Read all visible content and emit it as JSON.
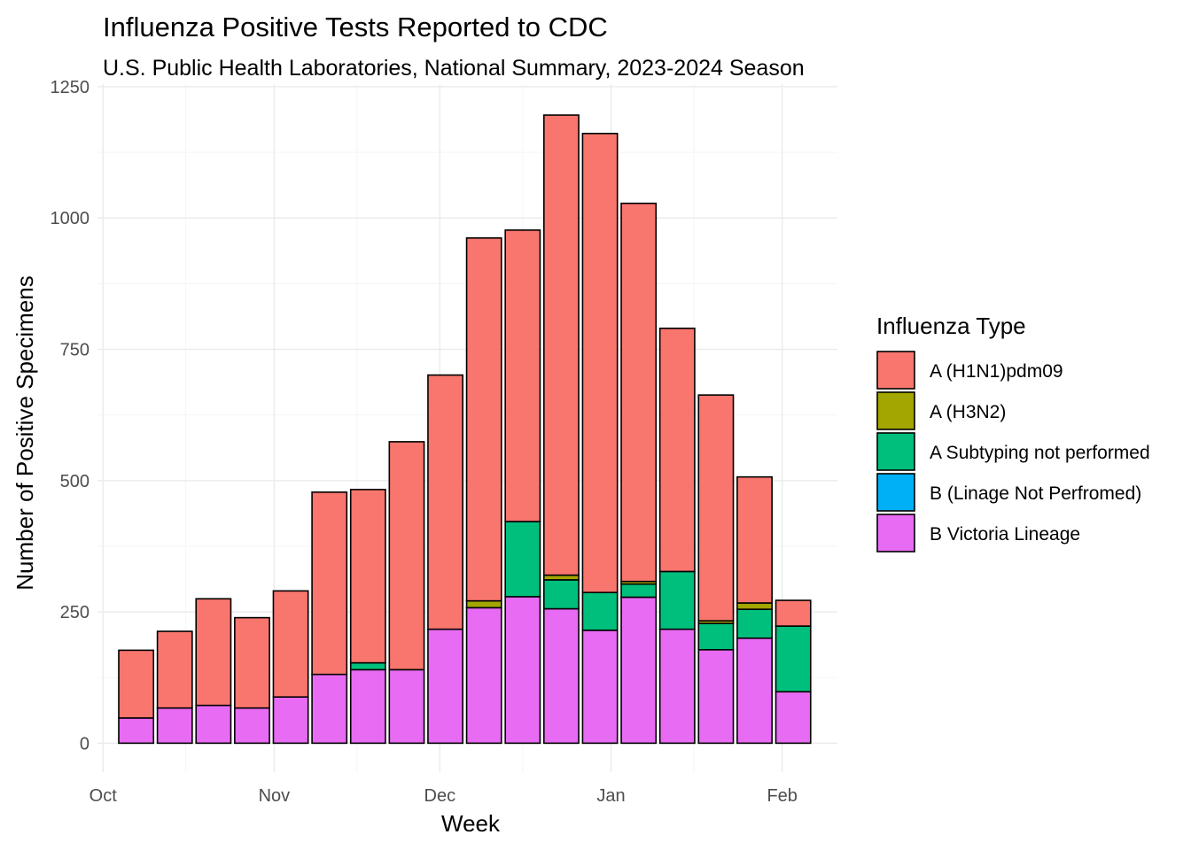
{
  "chart_data": {
    "type": "bar",
    "stacked": true,
    "title": "Influenza Positive Tests Reported to CDC",
    "subtitle": "U.S. Public Health Laboratories, National Summary, 2023-2024 Season",
    "xlabel": "Week",
    "ylabel": "Number of Positive Specimens",
    "ylim": [
      -55,
      1255
    ],
    "yticks": [
      0,
      250,
      500,
      750,
      1000,
      1250
    ],
    "x_date_range": [
      "2023-09-30",
      "2024-02-11"
    ],
    "x_ticks": [
      {
        "date": "2023-10-01",
        "label": "Oct"
      },
      {
        "date": "2023-11-01",
        "label": "Nov"
      },
      {
        "date": "2023-12-01",
        "label": "Dec"
      },
      {
        "date": "2024-01-01",
        "label": "Jan"
      },
      {
        "date": "2024-02-01",
        "label": "Feb"
      }
    ],
    "x_minor_ticks": [
      "2023-10-16",
      "2023-11-16",
      "2023-12-16",
      "2024-01-16"
    ],
    "grid": true,
    "legend": {
      "title": "Influenza Type",
      "position": "right",
      "entries": [
        "A (H1N1)pdm09",
        "A (H3N2)",
        "A Subtyping not performed",
        "B (Linage Not Perfromed)",
        "B Victoria Lineage"
      ]
    },
    "x": [
      "2023-10-07",
      "2023-10-14",
      "2023-10-21",
      "2023-10-28",
      "2023-11-04",
      "2023-11-11",
      "2023-11-18",
      "2023-11-25",
      "2023-12-02",
      "2023-12-09",
      "2023-12-16",
      "2023-12-23",
      "2023-12-30",
      "2024-01-06",
      "2024-01-13",
      "2024-01-20",
      "2024-01-27",
      "2024-02-03"
    ],
    "series": [
      {
        "name": "B Victoria Lineage",
        "color": "#E76BF3",
        "values": [
          48,
          67,
          72,
          67,
          88,
          131,
          140,
          140,
          217,
          258,
          279,
          256,
          215,
          278,
          217,
          178,
          200,
          98
        ]
      },
      {
        "name": "B (Linage Not Perfromed)",
        "color": "#00B0F6",
        "values": [
          0,
          0,
          0,
          0,
          0,
          0,
          0,
          0,
          0,
          0,
          0,
          0,
          0,
          0,
          0,
          0,
          0,
          0
        ]
      },
      {
        "name": "A Subtyping not performed",
        "color": "#00BF7D",
        "values": [
          0,
          0,
          0,
          0,
          0,
          0,
          13,
          0,
          0,
          0,
          143,
          55,
          72,
          25,
          110,
          50,
          55,
          125
        ]
      },
      {
        "name": "A (H3N2)",
        "color": "#A3A500",
        "values": [
          0,
          0,
          0,
          0,
          0,
          0,
          0,
          0,
          0,
          13,
          0,
          9,
          0,
          5,
          0,
          5,
          12,
          0
        ]
      },
      {
        "name": "A (H1N1)pdm09",
        "color": "#F8766D",
        "values": [
          129,
          146,
          203,
          172,
          202,
          347,
          330,
          434,
          484,
          691,
          555,
          876,
          874,
          720,
          463,
          430,
          240,
          49
        ]
      }
    ]
  }
}
